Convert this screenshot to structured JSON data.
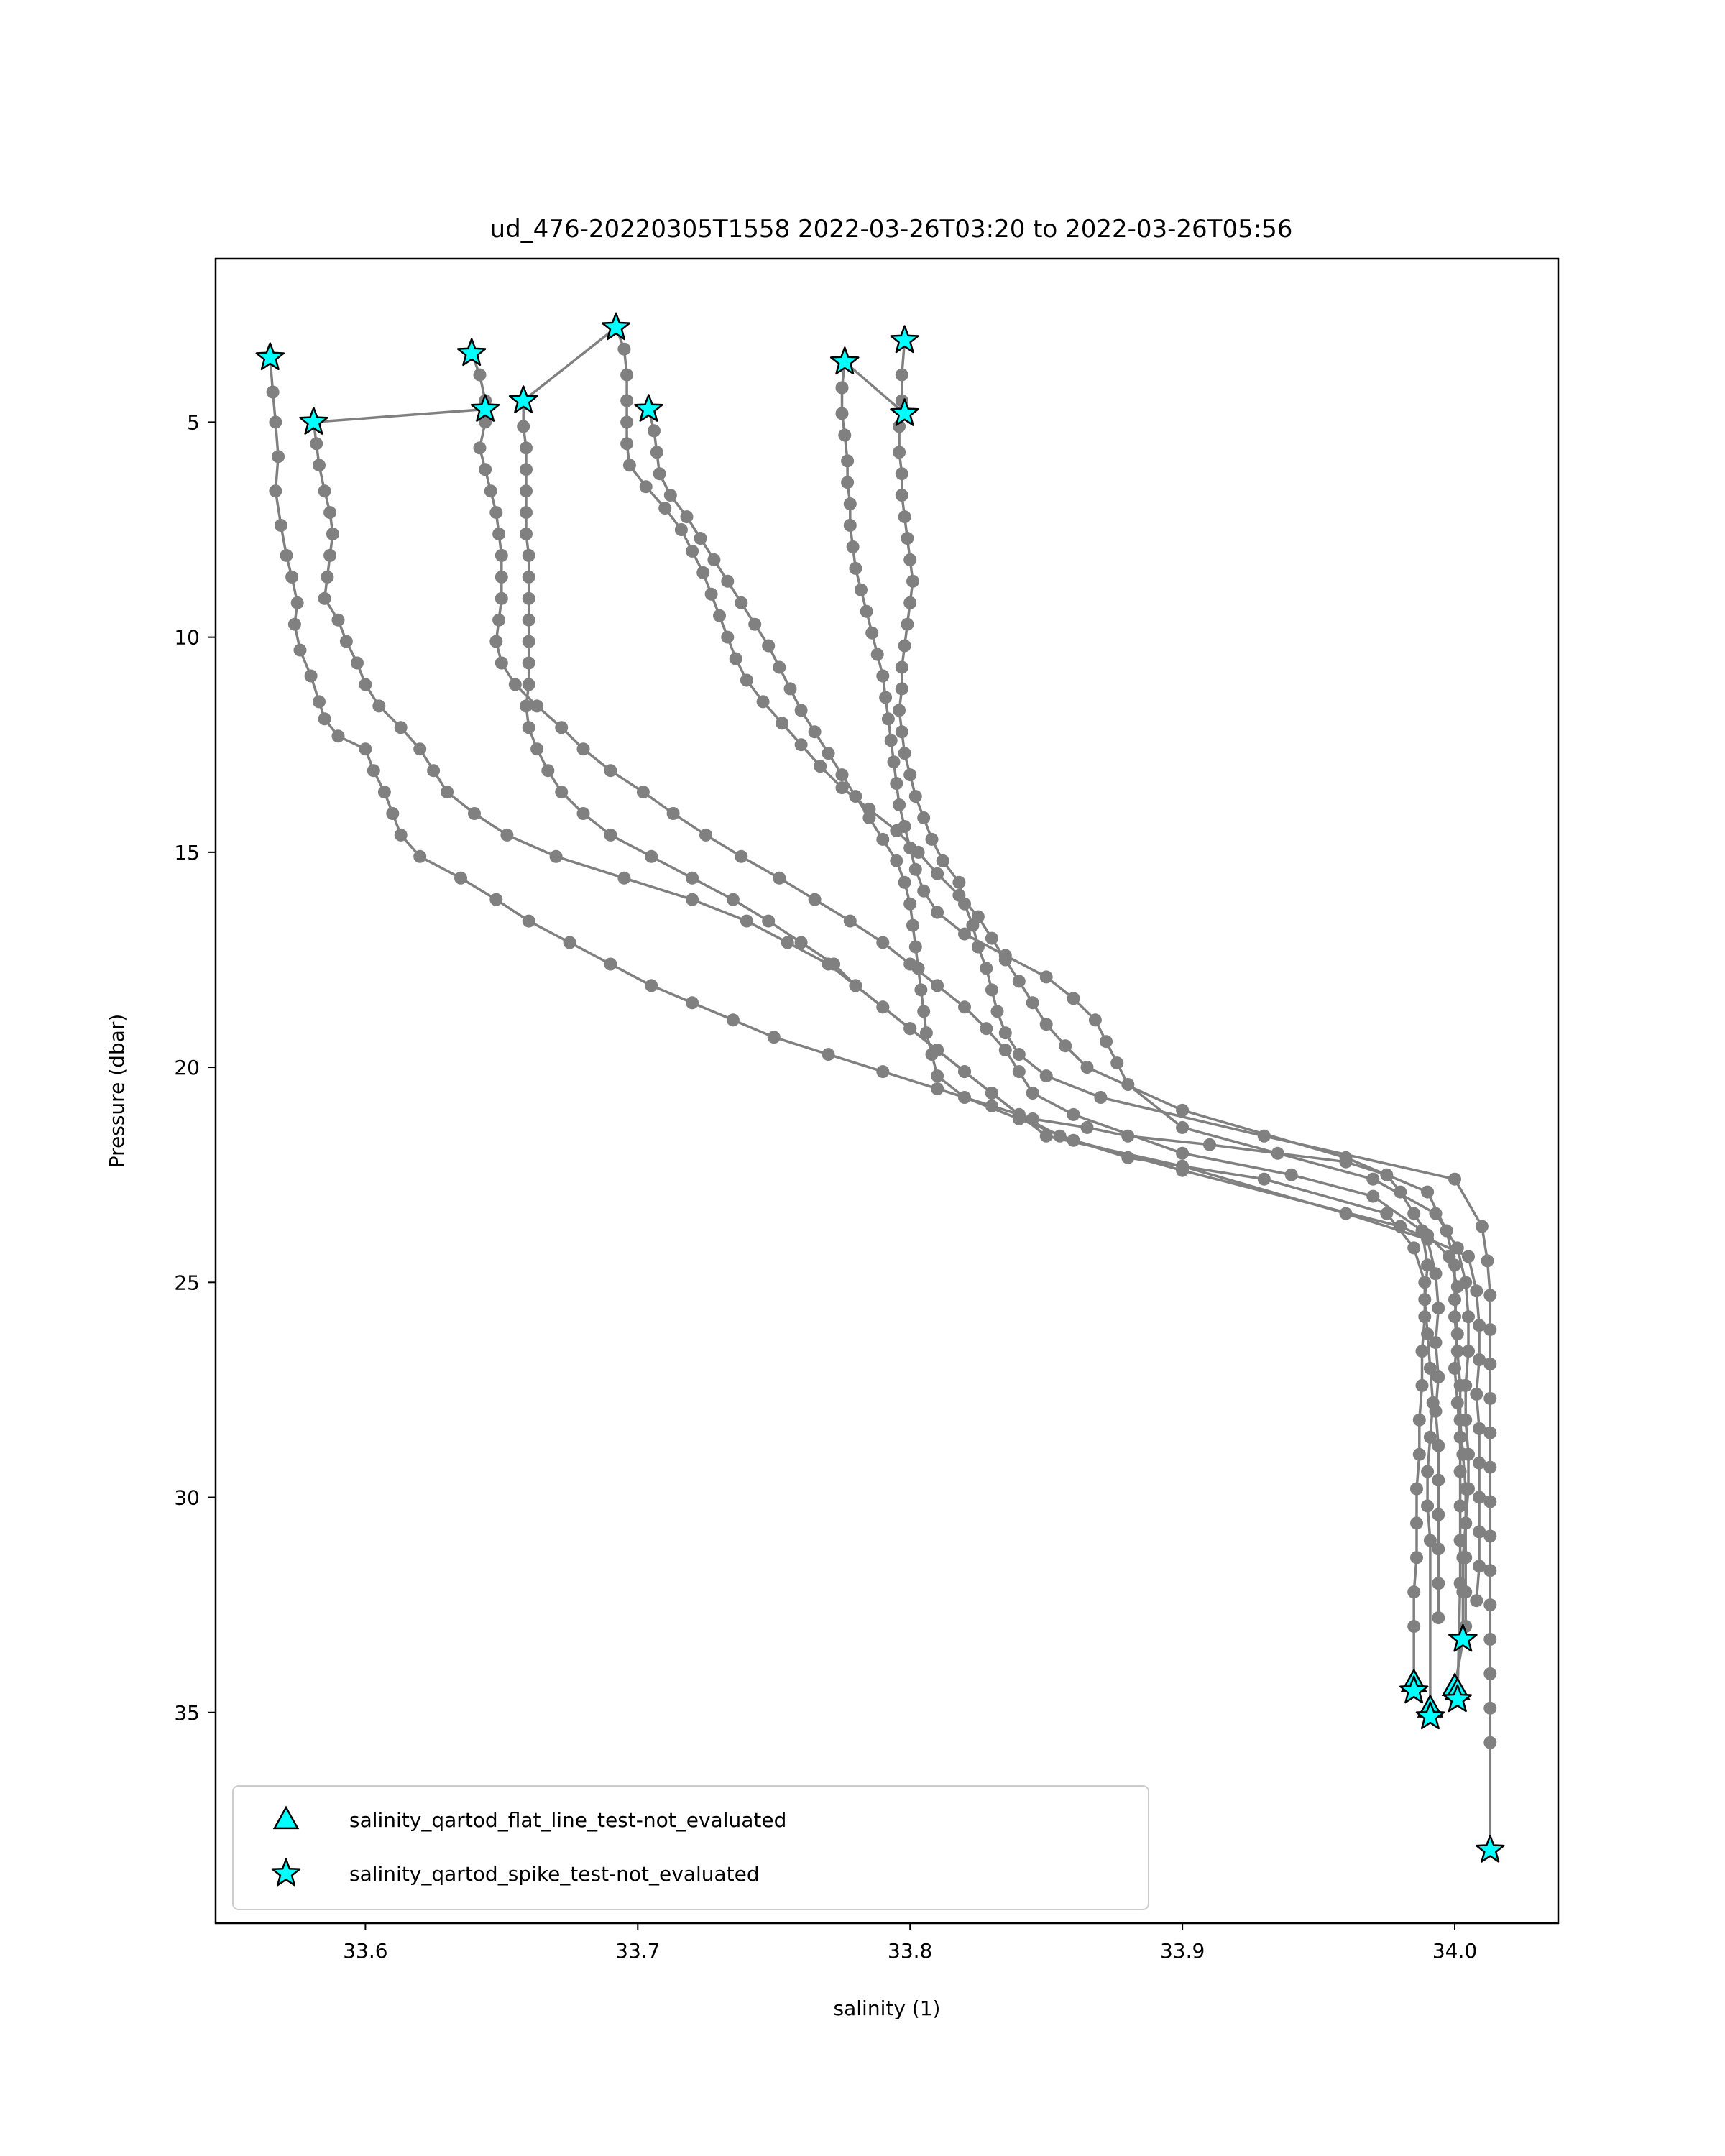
{
  "chart_data": {
    "type": "scatter",
    "title": "ud_476-20220305T1558 2022-03-26T03:20 to 2022-03-26T05:56",
    "xlabel": "salinity (1)",
    "ylabel": "Pressure (dbar)",
    "xlim": [
      33.545,
      34.038
    ],
    "ylim": [
      39.9,
      1.2
    ],
    "y_inverted": true,
    "xticks": [
      33.6,
      33.7,
      33.8,
      33.9,
      34.0
    ],
    "xtick_labels": [
      "33.6",
      "33.7",
      "33.8",
      "33.9",
      "34.0"
    ],
    "yticks": [
      5,
      10,
      15,
      20,
      25,
      30,
      35
    ],
    "ytick_labels": [
      "5",
      "10",
      "15",
      "20",
      "25",
      "30",
      "35"
    ],
    "grid": false,
    "legend_position": "lower-left",
    "colors": {
      "line": "#808080",
      "marker_fill": "#00ffff",
      "marker_edge": "#000000"
    },
    "legend": [
      {
        "label": "salinity_qartod_flat_line_test-not_evaluated",
        "marker": "triangle"
      },
      {
        "label": "salinity_qartod_spike_test-not_evaluated",
        "marker": "star"
      }
    ],
    "profiles": [
      {
        "x": [
          33.565,
          33.566,
          33.567,
          33.568,
          33.567,
          33.569,
          33.571,
          33.573,
          33.575,
          33.574,
          33.576,
          33.58,
          33.583,
          33.585,
          33.59,
          33.6,
          33.603,
          33.607,
          33.61,
          33.613,
          33.62,
          33.635,
          33.648,
          33.66,
          33.675,
          33.69,
          33.705,
          33.72,
          33.735,
          33.75,
          33.77,
          33.79,
          33.81,
          33.83,
          33.845,
          33.865,
          33.88,
          33.91,
          33.935,
          33.96,
          33.975,
          33.98,
          33.985,
          33.99,
          33.998,
          34.001,
          34.0,
          34.001,
          34.002,
          34.002,
          34.003,
          34.004,
          34.004,
          34.003,
          34.003,
          34.003
        ],
        "y": [
          3.5,
          4.3,
          5.0,
          5.8,
          6.6,
          7.4,
          8.1,
          8.6,
          9.2,
          9.7,
          10.3,
          10.9,
          11.5,
          11.9,
          12.3,
          12.6,
          13.1,
          13.6,
          14.1,
          14.6,
          15.1,
          15.6,
          16.1,
          16.6,
          17.1,
          17.6,
          18.1,
          18.5,
          18.9,
          19.3,
          19.7,
          20.1,
          20.5,
          20.9,
          21.2,
          21.4,
          21.6,
          21.8,
          22.0,
          22.2,
          22.5,
          22.9,
          23.4,
          23.9,
          24.4,
          25.1,
          25.8,
          26.6,
          27.4,
          28.2,
          29.0,
          29.8,
          30.6,
          31.4,
          32.2,
          33.3
        ]
      },
      {
        "x": [
          33.581,
          33.582,
          33.583,
          33.585,
          33.587,
          33.588,
          33.587,
          33.586,
          33.585,
          33.59,
          33.593,
          33.597,
          33.6,
          33.605,
          33.613,
          33.62,
          33.625,
          33.63,
          33.64,
          33.652,
          33.67,
          33.695,
          33.72,
          33.74,
          33.755,
          33.77,
          33.78,
          33.79,
          33.8,
          33.81,
          33.82,
          33.83,
          33.84,
          33.855,
          33.88,
          33.93,
          33.975,
          33.985,
          33.989,
          33.989,
          33.988,
          33.988,
          33.987,
          33.987,
          33.986,
          33.986,
          33.986,
          33.985,
          33.985,
          33.985
        ],
        "y": [
          5.0,
          5.5,
          6.0,
          6.6,
          7.1,
          7.6,
          8.1,
          8.6,
          9.1,
          9.6,
          10.1,
          10.6,
          11.1,
          11.6,
          12.1,
          12.6,
          13.1,
          13.6,
          14.1,
          14.6,
          15.1,
          15.6,
          16.1,
          16.6,
          17.1,
          17.6,
          18.1,
          18.6,
          19.1,
          19.6,
          20.1,
          20.6,
          21.1,
          21.6,
          22.1,
          22.6,
          23.4,
          24.2,
          25.0,
          25.8,
          26.6,
          27.4,
          28.2,
          29.0,
          29.8,
          30.6,
          31.4,
          32.2,
          33.0,
          34.5
        ]
      },
      {
        "x": [
          33.639,
          33.642,
          33.644,
          33.644,
          33.642,
          33.644,
          33.646,
          33.648,
          33.649,
          33.65,
          33.65,
          33.65,
          33.649,
          33.648,
          33.65,
          33.655,
          33.663,
          33.672,
          33.68,
          33.69,
          33.702,
          33.713,
          33.725,
          33.738,
          33.752,
          33.765,
          33.778,
          33.79,
          33.8,
          33.81,
          33.82,
          33.828,
          33.835,
          33.84,
          33.845,
          33.86,
          33.9,
          33.94,
          33.97,
          33.988,
          33.99,
          33.989,
          33.99,
          33.991,
          33.992,
          33.991,
          33.99,
          33.99,
          33.991,
          33.991
        ],
        "y": [
          3.4,
          3.9,
          4.5,
          5.0,
          5.6,
          6.1,
          6.6,
          7.1,
          7.6,
          8.1,
          8.6,
          9.1,
          9.6,
          10.1,
          10.6,
          11.1,
          11.6,
          12.1,
          12.6,
          13.1,
          13.6,
          14.1,
          14.6,
          15.1,
          15.6,
          16.1,
          16.6,
          17.1,
          17.6,
          18.1,
          18.6,
          19.1,
          19.6,
          20.1,
          20.6,
          21.1,
          22.0,
          22.5,
          23.0,
          23.8,
          24.6,
          25.4,
          26.2,
          27.0,
          27.8,
          28.6,
          29.4,
          30.2,
          31.0,
          35.1
        ]
      },
      {
        "x": [
          33.658,
          33.658,
          33.659,
          33.659,
          33.659,
          33.659,
          33.659,
          33.66,
          33.66,
          33.66,
          33.66,
          33.66,
          33.66,
          33.66,
          33.659,
          33.66,
          33.663,
          33.667,
          33.672,
          33.68,
          33.69,
          33.705,
          33.72,
          33.735,
          33.748,
          33.76,
          33.772,
          33.78,
          33.79,
          33.8,
          33.81,
          33.82,
          33.83,
          33.84,
          33.85,
          33.9,
          33.96,
          33.99,
          33.993,
          33.994,
          33.993,
          33.994,
          33.993,
          33.994,
          33.994,
          33.994,
          33.994,
          33.994,
          33.994
        ],
        "y": [
          4.5,
          5.1,
          5.6,
          6.1,
          6.6,
          7.1,
          7.6,
          8.1,
          8.6,
          9.1,
          9.6,
          10.1,
          10.6,
          11.1,
          11.6,
          12.1,
          12.6,
          13.1,
          13.6,
          14.1,
          14.6,
          15.1,
          15.6,
          16.1,
          16.6,
          17.1,
          17.6,
          18.1,
          18.6,
          19.1,
          19.6,
          20.1,
          20.6,
          21.1,
          21.6,
          22.3,
          23.4,
          24.0,
          24.8,
          25.6,
          26.4,
          27.2,
          28.0,
          28.8,
          29.6,
          30.4,
          31.2,
          32.0,
          32.8
        ]
      },
      {
        "x": [
          33.692,
          33.695,
          33.696,
          33.696,
          33.696,
          33.696,
          33.697,
          33.703,
          33.71,
          33.716,
          33.72,
          33.724,
          33.727,
          33.73,
          33.733,
          33.736,
          33.74,
          33.746,
          33.753,
          33.76,
          33.767,
          33.775,
          33.785,
          33.795,
          33.803,
          33.81,
          33.818,
          33.825,
          33.83,
          33.835,
          33.84,
          33.845,
          33.85,
          33.857,
          33.865,
          33.9,
          33.96,
          33.99,
          33.997,
          34.0,
          34.0,
          34.001,
          34.0,
          34.001,
          34.002,
          34.002,
          34.002,
          34.002,
          34.002,
          34.001
        ],
        "y": [
          2.8,
          3.3,
          3.9,
          4.5,
          5.0,
          5.5,
          6.0,
          6.5,
          7.0,
          7.5,
          8.0,
          8.5,
          9.0,
          9.5,
          10.0,
          10.5,
          11.0,
          11.5,
          12.0,
          12.5,
          13.0,
          13.5,
          14.0,
          14.5,
          15.0,
          15.5,
          16.0,
          16.5,
          17.0,
          17.5,
          18.0,
          18.5,
          19.0,
          19.5,
          20.0,
          21.0,
          22.1,
          22.9,
          23.8,
          24.6,
          25.4,
          26.2,
          27.0,
          27.8,
          28.6,
          29.4,
          30.2,
          31.0,
          32.0,
          34.7
        ]
      },
      {
        "x": [
          33.704,
          33.706,
          33.707,
          33.708,
          33.712,
          33.718,
          33.723,
          33.728,
          33.733,
          33.738,
          33.743,
          33.748,
          33.752,
          33.756,
          33.76,
          33.765,
          33.77,
          33.775,
          33.78,
          33.785,
          33.79,
          33.795,
          33.798,
          33.8,
          33.801,
          33.802,
          33.803,
          33.804,
          33.805,
          33.806,
          33.808,
          33.81,
          33.82,
          33.84,
          33.86,
          33.9,
          33.98,
          34.005,
          34.008,
          34.009,
          34.009,
          34.008,
          34.009,
          34.009,
          34.009,
          34.009,
          34.009,
          34.008
        ],
        "y": [
          4.7,
          5.2,
          5.7,
          6.2,
          6.7,
          7.2,
          7.7,
          8.2,
          8.7,
          9.2,
          9.7,
          10.2,
          10.7,
          11.2,
          11.7,
          12.2,
          12.7,
          13.2,
          13.7,
          14.2,
          14.7,
          15.2,
          15.7,
          16.2,
          16.7,
          17.2,
          17.7,
          18.2,
          18.7,
          19.2,
          19.7,
          20.2,
          20.7,
          21.2,
          21.7,
          22.4,
          23.7,
          24.4,
          25.2,
          26.0,
          26.8,
          27.6,
          28.4,
          29.2,
          30.0,
          30.8,
          31.6,
          32.4
        ]
      },
      {
        "x": [
          33.776,
          33.775,
          33.775,
          33.776,
          33.777,
          33.777,
          33.778,
          33.778,
          33.779,
          33.78,
          33.782,
          33.784,
          33.786,
          33.788,
          33.79,
          33.791,
          33.792,
          33.793,
          33.794,
          33.795,
          33.796,
          33.798,
          33.8,
          33.802,
          33.805,
          33.81,
          33.82,
          33.835,
          33.85,
          33.86,
          33.868,
          33.872,
          33.876,
          33.88,
          33.9,
          33.97,
          33.993,
          34.001,
          34.004,
          34.005,
          34.005,
          34.004,
          34.004,
          34.005,
          34.005,
          34.004,
          34.004,
          34.004,
          34.004,
          34.0
        ],
        "y": [
          3.6,
          4.2,
          4.8,
          5.3,
          5.9,
          6.4,
          6.9,
          7.4,
          7.9,
          8.4,
          8.9,
          9.4,
          9.9,
          10.4,
          10.9,
          11.4,
          11.9,
          12.4,
          12.9,
          13.4,
          13.9,
          14.4,
          14.9,
          15.4,
          15.9,
          16.4,
          16.9,
          17.4,
          17.9,
          18.4,
          18.9,
          19.4,
          19.9,
          20.4,
          21.4,
          22.6,
          23.4,
          24.2,
          25.0,
          25.8,
          26.6,
          27.4,
          28.2,
          29.0,
          29.8,
          30.6,
          31.4,
          32.2,
          33.0,
          34.4
        ]
      },
      {
        "x": [
          33.798,
          33.797,
          33.797,
          33.796,
          33.796,
          33.797,
          33.797,
          33.798,
          33.799,
          33.8,
          33.801,
          33.8,
          33.799,
          33.798,
          33.797,
          33.797,
          33.796,
          33.797,
          33.798,
          33.8,
          33.802,
          33.805,
          33.808,
          33.812,
          33.818,
          33.82,
          33.823,
          33.825,
          33.828,
          33.83,
          33.832,
          33.835,
          33.84,
          33.85,
          33.87,
          33.93,
          34.0,
          34.01,
          34.012,
          34.013,
          34.013,
          34.013,
          34.013,
          34.013,
          34.013,
          34.013,
          34.013,
          34.013,
          34.013,
          34.013,
          34.013,
          34.013,
          34.013,
          34.013
        ],
        "y": [
          3.1,
          3.9,
          4.5,
          5.1,
          5.7,
          6.2,
          6.7,
          7.2,
          7.7,
          8.2,
          8.7,
          9.2,
          9.7,
          10.2,
          10.7,
          11.2,
          11.7,
          12.2,
          12.7,
          13.2,
          13.7,
          14.2,
          14.7,
          15.2,
          15.7,
          16.2,
          16.7,
          17.2,
          17.7,
          18.2,
          18.7,
          19.2,
          19.7,
          20.2,
          20.7,
          21.6,
          22.6,
          23.7,
          24.5,
          25.3,
          26.1,
          26.9,
          27.7,
          28.5,
          29.3,
          30.1,
          30.9,
          31.7,
          32.5,
          33.3,
          34.1,
          34.9,
          35.7,
          38.2
        ]
      }
    ],
    "connectors": [
      {
        "x": [
          33.581,
          33.644
        ],
        "y": [
          5.0,
          4.7
        ]
      },
      {
        "x": [
          33.658,
          33.692
        ],
        "y": [
          4.5,
          2.8
        ]
      },
      {
        "x": [
          33.776,
          33.798
        ],
        "y": [
          3.6,
          4.8
        ]
      }
    ],
    "spike_stars": {
      "x": [
        33.565,
        33.581,
        33.639,
        33.644,
        33.658,
        33.692,
        33.704,
        33.776,
        33.798,
        33.798,
        34.003,
        33.985,
        33.991,
        34.001,
        34.013
      ],
      "y": [
        3.5,
        5.0,
        3.4,
        4.7,
        4.5,
        2.8,
        4.7,
        3.6,
        3.1,
        4.8,
        33.3,
        34.5,
        35.1,
        34.7,
        38.2
      ]
    },
    "flat_line_triangles": {
      "x": [
        33.985,
        33.991,
        34.0,
        34.001
      ],
      "y": [
        34.3,
        34.9,
        34.4,
        34.5
      ]
    }
  }
}
